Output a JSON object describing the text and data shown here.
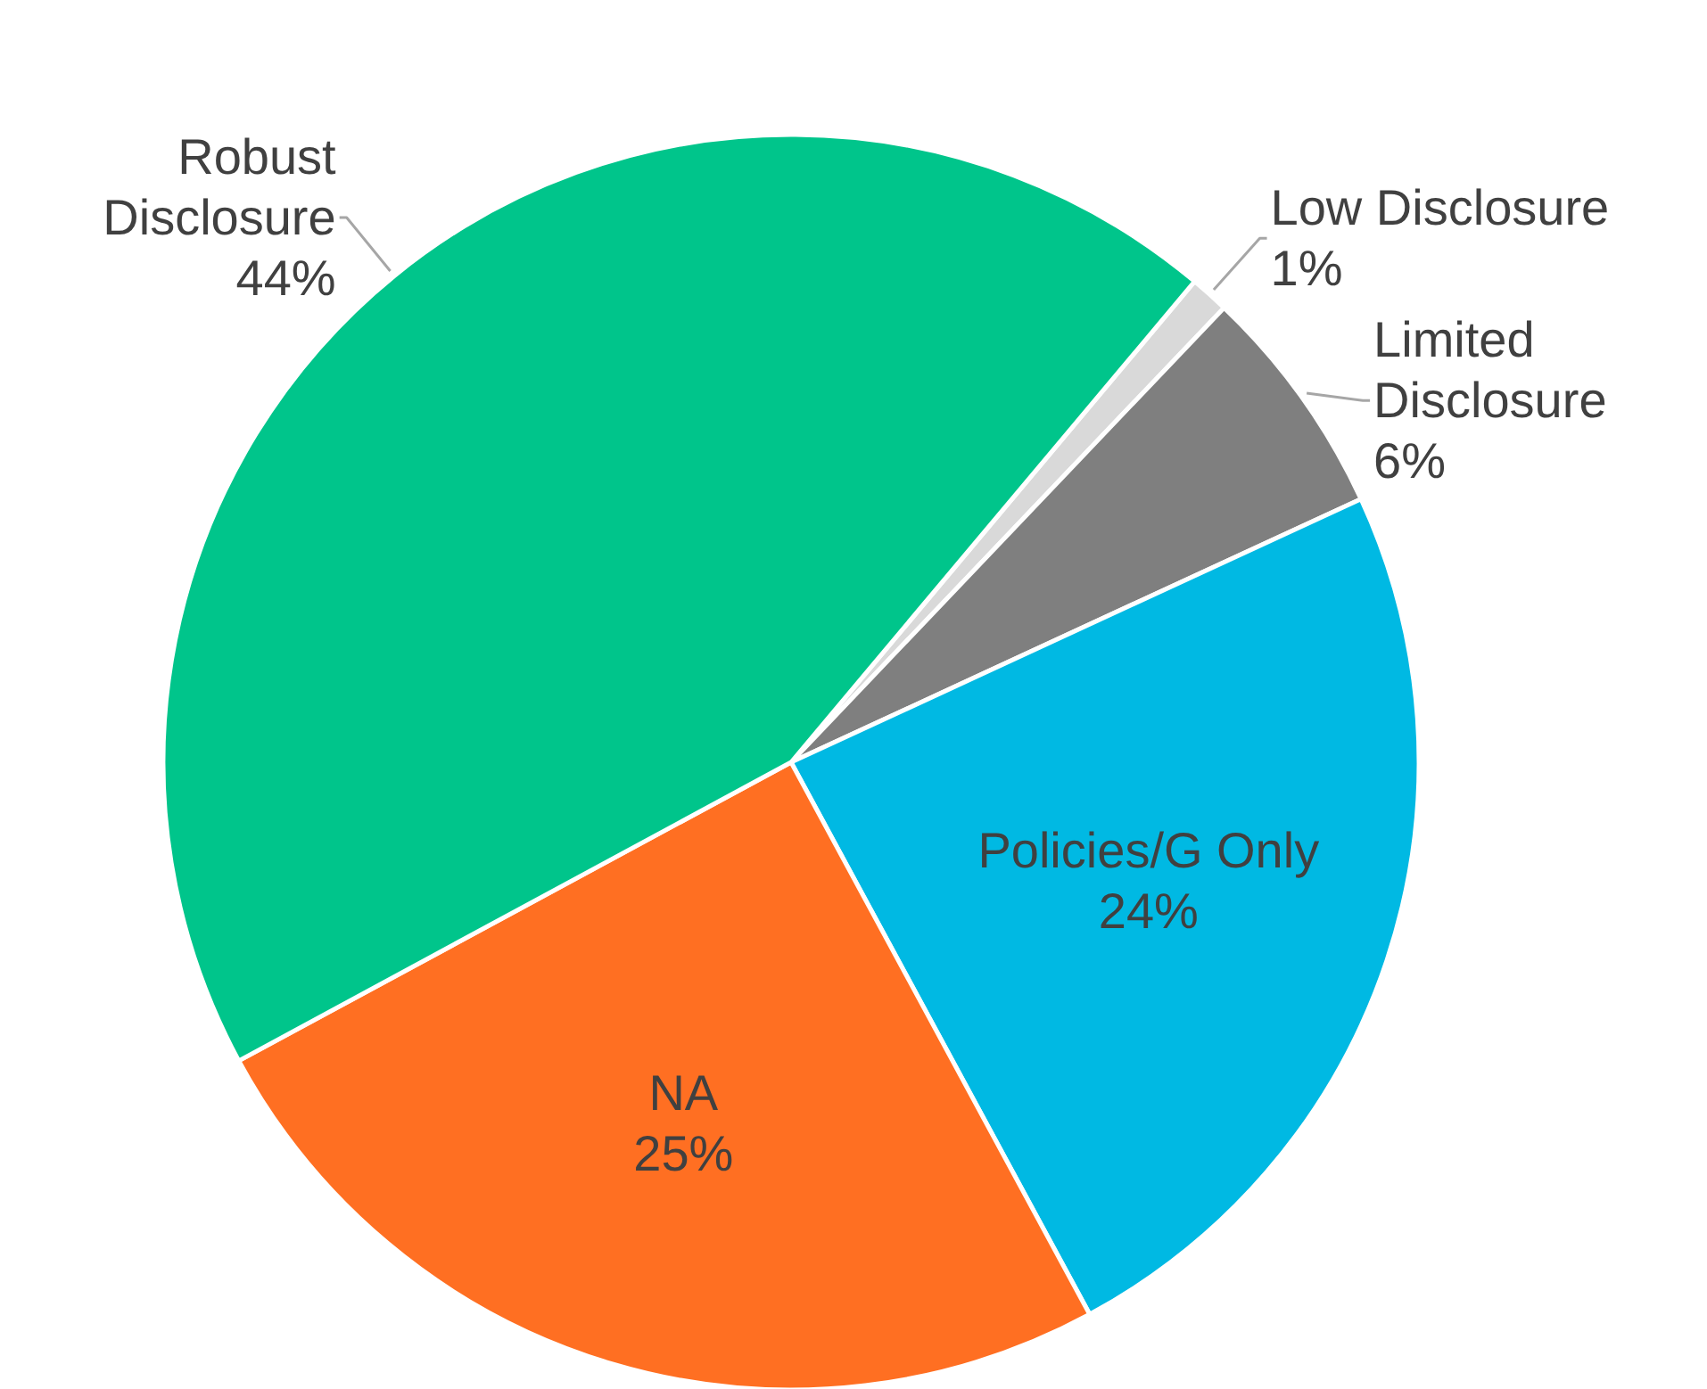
{
  "chart_data": {
    "type": "pie",
    "categories": [
      "Low Disclosure",
      "Limited Disclosure",
      "Policies/G Only",
      "NA",
      "Robust Disclosure"
    ],
    "values": [
      1,
      6,
      24,
      25,
      44
    ],
    "value_labels": [
      "1%",
      "6%",
      "24%",
      "25%",
      "44%"
    ],
    "colors": [
      "#d9d9d9",
      "#7f7f7f",
      "#00b9e3",
      "#ff6f22",
      "#00c58b"
    ]
  }
}
